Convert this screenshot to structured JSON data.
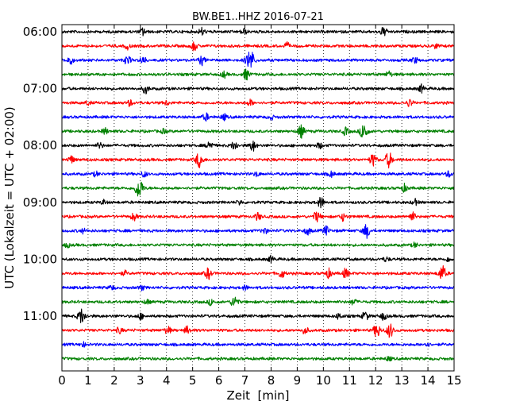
{
  "chart_data": {
    "type": "line",
    "title": "BW.BE1..HHZ 2016-07-21",
    "xlabel": "Zeit  [min]",
    "ylabel": "UTC (Lokalzeit = UTC + 02:00)",
    "xlim": [
      0,
      15
    ],
    "x_ticks": [
      "0",
      "1",
      "2",
      "3",
      "4",
      "5",
      "6",
      "7",
      "8",
      "9",
      "10",
      "11",
      "12",
      "13",
      "14",
      "15"
    ],
    "y_ticks": [
      {
        "label": "06:00",
        "row": 0
      },
      {
        "label": "07:00",
        "row": 4
      },
      {
        "label": "08:00",
        "row": 8
      },
      {
        "label": "09:00",
        "row": 12
      },
      {
        "label": "10:00",
        "row": 16
      },
      {
        "label": "11:00",
        "row": 20
      }
    ],
    "grid_vertical": true,
    "grid_style": "dotted",
    "row_minutes": 15,
    "row_count": 24,
    "colors": [
      "#000000",
      "#ff0000",
      "#0000ff",
      "#008000"
    ],
    "events": [
      [
        [
          3.1,
          0.5
        ],
        [
          5.35,
          0.5
        ],
        [
          6.95,
          0.4
        ],
        [
          12.3,
          0.6
        ]
      ],
      [
        [
          2.5,
          0.4
        ],
        [
          5.05,
          0.6
        ],
        [
          8.6,
          0.4
        ],
        [
          14.3,
          0.3
        ]
      ],
      [
        [
          0.3,
          0.6
        ],
        [
          2.5,
          0.6
        ],
        [
          3.1,
          0.5
        ],
        [
          5.35,
          0.6
        ],
        [
          7.2,
          1.4
        ],
        [
          13.5,
          0.4
        ]
      ],
      [
        [
          6.2,
          0.4
        ],
        [
          7.05,
          0.7
        ],
        [
          12.5,
          0.4
        ]
      ],
      [
        [
          3.2,
          0.6
        ],
        [
          13.75,
          0.5
        ]
      ],
      [
        [
          1.0,
          0.3
        ],
        [
          2.6,
          0.4
        ],
        [
          4.0,
          0.3
        ],
        [
          7.2,
          0.4
        ],
        [
          13.3,
          0.5
        ]
      ],
      [
        [
          5.5,
          0.5
        ],
        [
          6.2,
          0.4
        ],
        [
          8.0,
          0.3
        ]
      ],
      [
        [
          1.65,
          0.4
        ],
        [
          3.9,
          0.3
        ],
        [
          9.15,
          0.8
        ],
        [
          10.85,
          0.5
        ],
        [
          11.55,
          1.1
        ]
      ],
      [
        [
          1.45,
          0.4
        ],
        [
          5.65,
          0.6
        ],
        [
          6.6,
          0.6
        ],
        [
          7.3,
          0.7
        ],
        [
          9.85,
          0.4
        ]
      ],
      [
        [
          0.35,
          0.5
        ],
        [
          5.25,
          1.0
        ],
        [
          11.9,
          0.8
        ],
        [
          12.5,
          1.0
        ]
      ],
      [
        [
          1.3,
          0.3
        ],
        [
          3.15,
          0.4
        ],
        [
          7.45,
          0.3
        ],
        [
          10.3,
          0.4
        ],
        [
          14.8,
          0.4
        ]
      ],
      [
        [
          2.95,
          1.3
        ],
        [
          13.1,
          0.5
        ]
      ],
      [
        [
          1.6,
          0.3
        ],
        [
          6.8,
          0.3
        ],
        [
          9.9,
          0.7
        ],
        [
          13.5,
          0.4
        ]
      ],
      [
        [
          2.75,
          0.5
        ],
        [
          7.5,
          0.5
        ],
        [
          9.75,
          0.7
        ],
        [
          10.75,
          0.5
        ],
        [
          13.4,
          0.6
        ]
      ],
      [
        [
          0.8,
          0.3
        ],
        [
          7.75,
          0.4
        ],
        [
          9.4,
          0.5
        ],
        [
          10.1,
          0.6
        ],
        [
          11.65,
          0.9
        ]
      ],
      [
        [
          0.2,
          0.3
        ],
        [
          13.5,
          0.3
        ]
      ],
      [
        [
          8.0,
          0.4
        ],
        [
          12.4,
          0.3
        ],
        [
          14.8,
          0.3
        ]
      ],
      [
        [
          2.4,
          0.3
        ],
        [
          5.6,
          0.7
        ],
        [
          8.4,
          0.6
        ],
        [
          10.2,
          0.6
        ],
        [
          10.85,
          0.6
        ],
        [
          14.55,
          1.0
        ]
      ],
      [
        [
          1.9,
          0.3
        ],
        [
          3.05,
          0.3
        ],
        [
          7.0,
          0.3
        ]
      ],
      [
        [
          3.25,
          0.3
        ],
        [
          5.7,
          0.4
        ],
        [
          6.6,
          0.8
        ],
        [
          11.15,
          0.4
        ]
      ],
      [
        [
          0.75,
          1.0
        ],
        [
          3.0,
          0.4
        ],
        [
          10.6,
          0.4
        ],
        [
          11.6,
          0.6
        ],
        [
          12.3,
          0.5
        ]
      ],
      [
        [
          2.2,
          0.4
        ],
        [
          4.05,
          0.5
        ],
        [
          4.8,
          0.5
        ],
        [
          9.3,
          0.5
        ],
        [
          12.05,
          0.9
        ],
        [
          12.55,
          0.9
        ]
      ],
      [
        [
          0.8,
          0.3
        ],
        [
          13.95,
          0.3
        ]
      ],
      [
        [
          12.5,
          0.3
        ]
      ]
    ]
  }
}
